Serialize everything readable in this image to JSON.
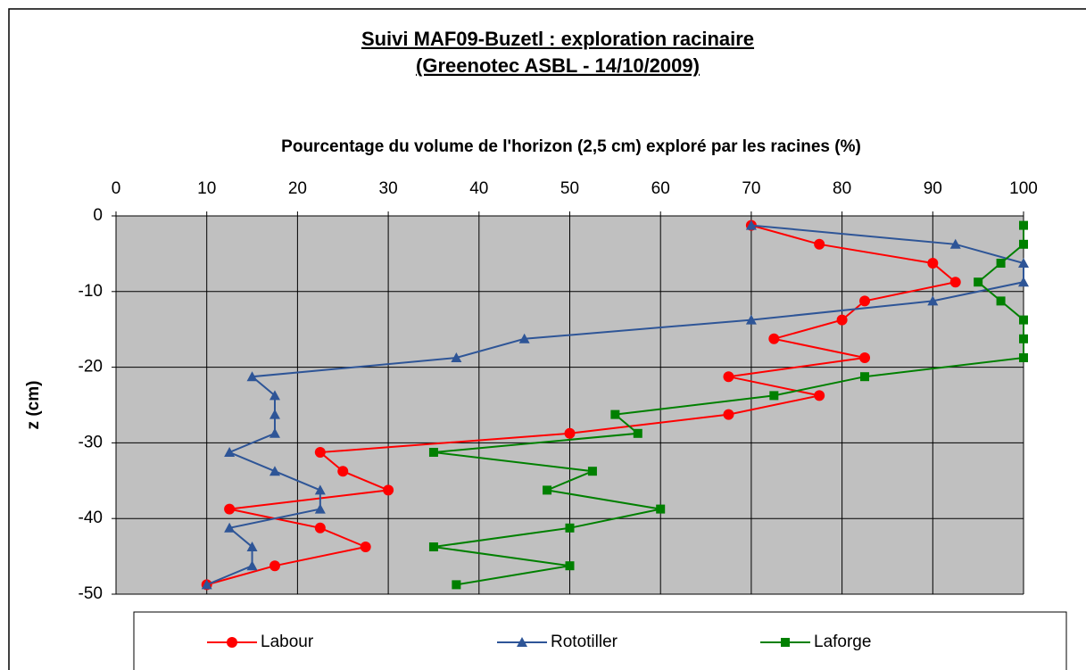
{
  "chart_data": {
    "type": "line",
    "title": [
      "Suivi MAF09-Buzetl : exploration racinaire",
      "(Greenotec ASBL - 14/10/2009)"
    ],
    "x_label": "Pourcentage du volume de l'horizon (2,5 cm) exploré par les racines (%)",
    "y_label": "z (cm)",
    "y": [
      -1.25,
      -3.75,
      -6.25,
      -8.75,
      -11.25,
      -13.75,
      -16.25,
      -18.75,
      -21.25,
      -23.75,
      -26.25,
      -28.75,
      -31.25,
      -33.75,
      -36.25,
      -38.75,
      -41.25,
      -43.75,
      -46.25,
      -48.75
    ],
    "series": [
      {
        "name": "Labour",
        "color": "#ff0000",
        "marker": "circle",
        "values": [
          70,
          77.5,
          90,
          92.5,
          82.5,
          80,
          72.5,
          82.5,
          67.5,
          77.5,
          67.5,
          50,
          22.5,
          25,
          30,
          12.5,
          22.5,
          27.5,
          17.5,
          10
        ]
      },
      {
        "name": "Rototiller",
        "color": "#2e5597",
        "marker": "triangle",
        "values": [
          70,
          92.5,
          100,
          100,
          90,
          70,
          45,
          37.5,
          15,
          17.5,
          17.5,
          17.5,
          12.5,
          17.5,
          22.5,
          22.5,
          12.5,
          15,
          15,
          10
        ]
      },
      {
        "name": "Laforge",
        "color": "#008000",
        "marker": "square",
        "values": [
          100,
          100,
          97.5,
          95,
          97.5,
          100,
          100,
          100,
          82.5,
          72.5,
          55,
          57.5,
          35,
          52.5,
          47.5,
          60,
          50,
          35,
          50,
          37.5
        ]
      }
    ],
    "xlim": [
      0,
      100
    ],
    "xticks": [
      0,
      10,
      20,
      30,
      40,
      50,
      60,
      70,
      80,
      90,
      100
    ],
    "ylim": [
      -50,
      0
    ],
    "yticks": [
      0,
      -10,
      -20,
      -30,
      -40,
      -50
    ],
    "grid": true,
    "legend": "bottom"
  }
}
